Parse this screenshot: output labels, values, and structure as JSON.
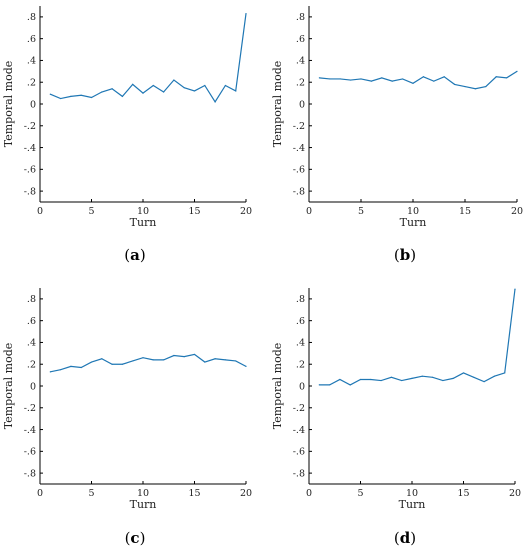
{
  "line_color": "#1f77b4",
  "chart_data": [
    {
      "type": "line",
      "panel_label": "a",
      "xlabel": "Turn",
      "ylabel": "Temporal mode",
      "xlim": [
        0,
        20
      ],
      "ylim": [
        -0.9,
        0.9
      ],
      "xticks": [
        0,
        5,
        10,
        15,
        20
      ],
      "yticks": [
        -0.8,
        -0.6,
        -0.4,
        -0.2,
        0,
        0.2,
        0.4,
        0.6,
        0.8
      ],
      "grid": false,
      "x": [
        1,
        2,
        3,
        4,
        5,
        6,
        7,
        8,
        9,
        10,
        11,
        12,
        13,
        14,
        15,
        16,
        17,
        18,
        19,
        20
      ],
      "y": [
        0.09,
        0.05,
        0.07,
        0.08,
        0.06,
        0.11,
        0.14,
        0.07,
        0.18,
        0.1,
        0.17,
        0.11,
        0.22,
        0.15,
        0.12,
        0.17,
        0.02,
        0.17,
        0.12,
        0.83
      ]
    },
    {
      "type": "line",
      "panel_label": "b",
      "xlabel": "Turn",
      "ylabel": "Temporal mode",
      "xlim": [
        0,
        20
      ],
      "ylim": [
        -0.9,
        0.9
      ],
      "xticks": [
        0,
        5,
        10,
        15,
        20
      ],
      "yticks": [
        -0.8,
        -0.6,
        -0.4,
        -0.2,
        0,
        0.2,
        0.4,
        0.6,
        0.8
      ],
      "grid": false,
      "x": [
        1,
        2,
        3,
        4,
        5,
        6,
        7,
        8,
        9,
        10,
        11,
        12,
        13,
        14,
        15,
        16,
        17,
        18,
        19,
        20
      ],
      "y": [
        0.24,
        0.23,
        0.23,
        0.22,
        0.23,
        0.21,
        0.24,
        0.21,
        0.23,
        0.19,
        0.25,
        0.21,
        0.25,
        0.18,
        0.16,
        0.14,
        0.16,
        0.25,
        0.24,
        0.3
      ]
    },
    {
      "type": "line",
      "panel_label": "c",
      "xlabel": "Turn",
      "ylabel": "Temporal mode",
      "xlim": [
        0,
        20
      ],
      "ylim": [
        -0.9,
        0.9
      ],
      "xticks": [
        0,
        5,
        10,
        15,
        20
      ],
      "yticks": [
        -0.8,
        -0.6,
        -0.4,
        -0.2,
        0,
        0.2,
        0.4,
        0.6,
        0.8
      ],
      "grid": false,
      "x": [
        1,
        2,
        3,
        4,
        5,
        6,
        7,
        8,
        9,
        10,
        11,
        12,
        13,
        14,
        15,
        16,
        17,
        18,
        19,
        20
      ],
      "y": [
        0.13,
        0.15,
        0.18,
        0.17,
        0.22,
        0.25,
        0.2,
        0.2,
        0.23,
        0.26,
        0.24,
        0.24,
        0.28,
        0.27,
        0.29,
        0.22,
        0.25,
        0.24,
        0.23,
        0.18
      ]
    },
    {
      "type": "line",
      "panel_label": "d",
      "xlabel": "Turn",
      "ylabel": "Temporal mode",
      "xlim": [
        0,
        20
      ],
      "ylim": [
        -0.9,
        0.9
      ],
      "xticks": [
        0,
        5,
        10,
        15,
        20
      ],
      "yticks": [
        -0.8,
        -0.6,
        -0.4,
        -0.2,
        0,
        0.2,
        0.4,
        0.6,
        0.8
      ],
      "grid": false,
      "x": [
        1,
        2,
        3,
        4,
        5,
        6,
        7,
        8,
        9,
        10,
        11,
        12,
        13,
        14,
        15,
        16,
        17,
        18,
        19,
        20
      ],
      "y": [
        0.01,
        0.01,
        0.06,
        0.01,
        0.06,
        0.06,
        0.05,
        0.08,
        0.05,
        0.07,
        0.09,
        0.08,
        0.05,
        0.07,
        0.12,
        0.08,
        0.04,
        0.09,
        0.12,
        0.89
      ]
    }
  ]
}
